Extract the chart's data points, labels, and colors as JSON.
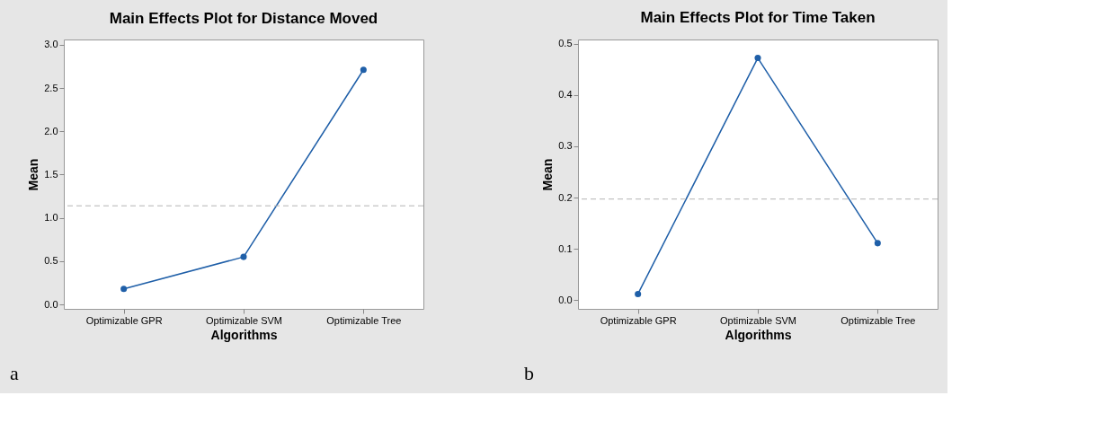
{
  "chart_data": [
    {
      "type": "line",
      "title": "Main Effects Plot for Distance Moved",
      "xlabel": "Algorithms",
      "ylabel": "Mean",
      "categories": [
        "Optimizable GPR",
        "Optimizable SVM",
        "Optimizable Tree"
      ],
      "series": [
        {
          "color": "#1f5fa8",
          "values": [
            0.18,
            0.55,
            2.71
          ]
        }
      ],
      "ylim": [
        -0.05,
        3.06
      ],
      "yticks": [
        {
          "value": 0,
          "label": "0.0"
        },
        0.5,
        {
          "value": 1,
          "label": "1.0"
        },
        1.5,
        {
          "value": 2,
          "label": "2.0"
        },
        2.5,
        {
          "value": 3,
          "label": "3.0"
        }
      ],
      "ref_lines": [
        {
          "axis": "y",
          "value": 1.14,
          "color": "#b4b4b4",
          "line_style": "dashed"
        }
      ],
      "marker": "circle",
      "grid": false,
      "annotations": [
        "a"
      ]
    },
    {
      "type": "line",
      "title": "Main Effects Plot for Time Taken",
      "xlabel": "Algorithms",
      "ylabel": "Mean",
      "categories": [
        "Optimizable GPR",
        "Optimizable SVM",
        "Optimizable Tree"
      ],
      "series": [
        {
          "color": "#1f5fa8",
          "values": [
            0.012,
            0.472,
            0.111
          ]
        }
      ],
      "ylim": [
        -0.017,
        0.508
      ],
      "yticks": [
        {
          "value": 0,
          "label": "0.0"
        },
        0.1,
        0.2,
        0.3,
        0.4,
        0.5
      ],
      "ref_lines": [
        {
          "axis": "y",
          "value": 0.197,
          "color": "#b4b4b4",
          "line_style": "dashed"
        }
      ],
      "marker": "circle",
      "grid": false,
      "annotations": [
        "b"
      ]
    }
  ]
}
